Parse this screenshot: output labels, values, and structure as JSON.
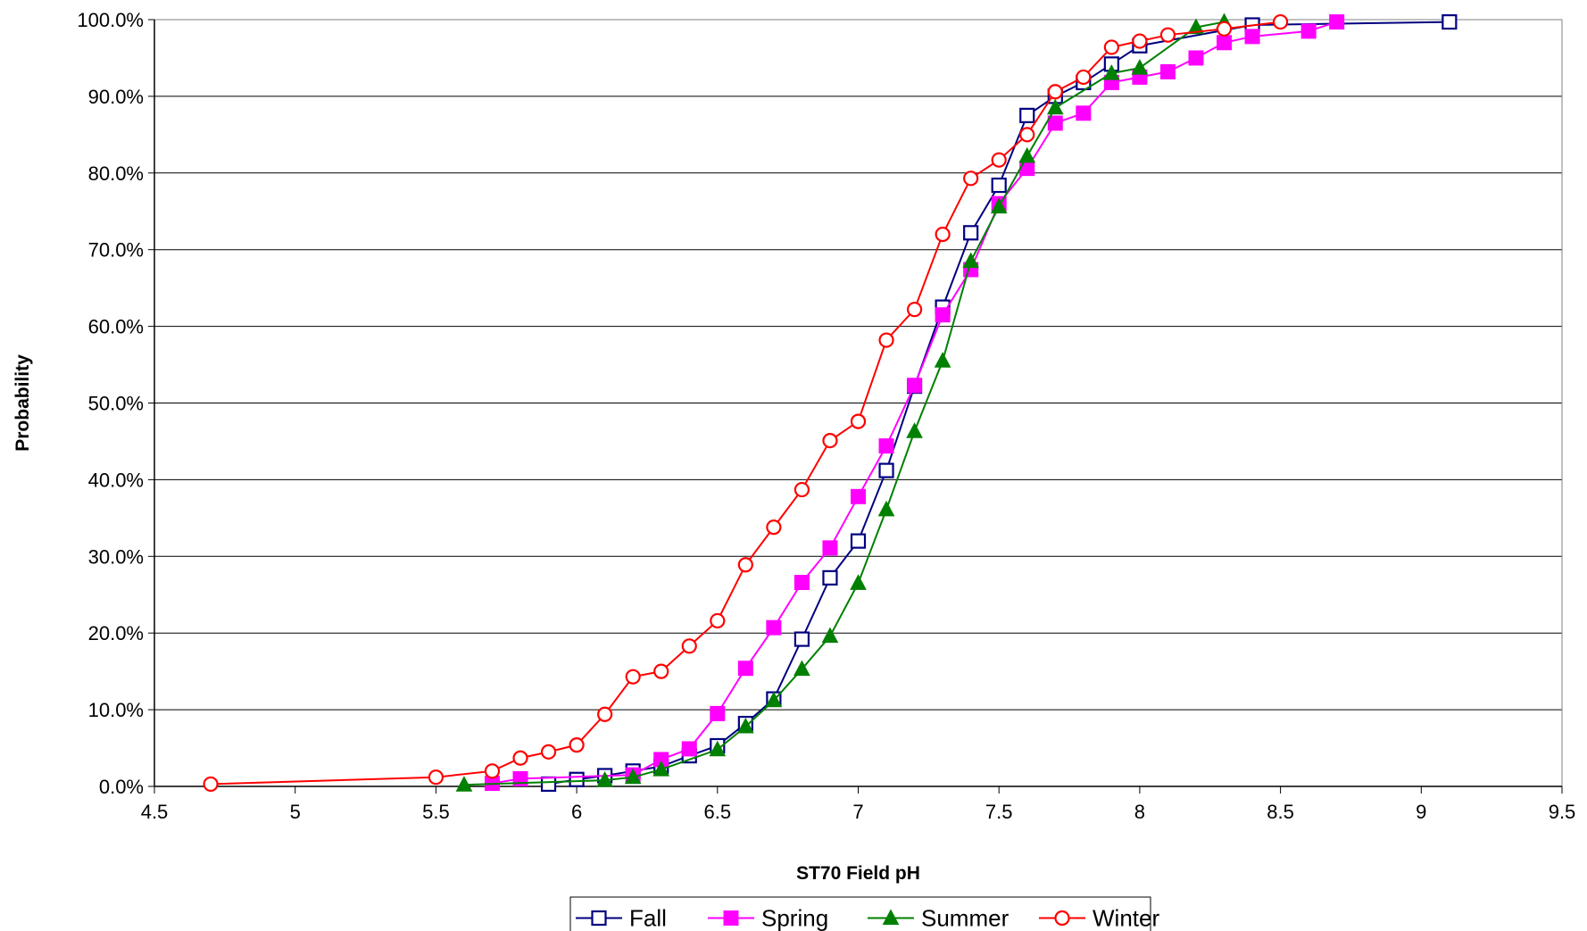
{
  "chart_data": {
    "type": "line",
    "title": "",
    "xlabel": "ST70 Field pH",
    "ylabel": "Probability",
    "xlim": [
      4.5,
      9.5
    ],
    "ylim": [
      0,
      1
    ],
    "x_ticks": [
      4.5,
      5,
      5.5,
      6,
      6.5,
      7,
      7.5,
      8,
      8.5,
      9,
      9.5
    ],
    "x_tick_labels": [
      "4.5",
      "5",
      "5.5",
      "6",
      "6.5",
      "7",
      "7.5",
      "8",
      "8.5",
      "9",
      "9.5"
    ],
    "y_ticks": [
      0,
      0.1,
      0.2,
      0.3,
      0.4,
      0.5,
      0.6,
      0.7,
      0.8,
      0.9,
      1.0
    ],
    "y_tick_labels": [
      "0.0%",
      "10.0%",
      "20.0%",
      "30.0%",
      "40.0%",
      "50.0%",
      "60.0%",
      "70.0%",
      "80.0%",
      "90.0%",
      "100.0%"
    ],
    "grid": "horizontal",
    "legend_position": "bottom",
    "series": [
      {
        "name": "Fall",
        "color": "#000080",
        "marker": "open-square",
        "x": [
          5.9,
          6.0,
          6.1,
          6.2,
          6.3,
          6.4,
          6.5,
          6.6,
          6.7,
          6.8,
          6.9,
          7.0,
          7.1,
          7.2,
          7.3,
          7.4,
          7.5,
          7.6,
          7.7,
          7.8,
          7.9,
          8.0,
          8.4,
          9.1
        ],
        "y": [
          0.003,
          0.009,
          0.014,
          0.02,
          0.026,
          0.04,
          0.053,
          0.082,
          0.114,
          0.192,
          0.272,
          0.32,
          0.412,
          0.522,
          0.625,
          0.722,
          0.784,
          0.875,
          0.9,
          0.918,
          0.942,
          0.966,
          0.993,
          0.997
        ]
      },
      {
        "name": "Spring",
        "color": "#ff00ff",
        "marker": "filled-square",
        "x": [
          5.7,
          5.8,
          6.2,
          6.3,
          6.4,
          6.5,
          6.6,
          6.7,
          6.8,
          6.9,
          7.0,
          7.1,
          7.2,
          7.3,
          7.4,
          7.5,
          7.6,
          7.7,
          7.8,
          7.9,
          8.0,
          8.1,
          8.2,
          8.3,
          8.4,
          8.6,
          8.7
        ],
        "y": [
          0.004,
          0.01,
          0.015,
          0.035,
          0.049,
          0.095,
          0.154,
          0.207,
          0.266,
          0.311,
          0.378,
          0.444,
          0.523,
          0.615,
          0.674,
          0.76,
          0.806,
          0.865,
          0.878,
          0.918,
          0.925,
          0.932,
          0.95,
          0.97,
          0.978,
          0.985,
          0.997
        ]
      },
      {
        "name": "Summer",
        "color": "#008000",
        "marker": "filled-triangle",
        "x": [
          5.6,
          6.1,
          6.2,
          6.3,
          6.5,
          6.6,
          6.7,
          6.8,
          6.9,
          7.0,
          7.1,
          7.2,
          7.3,
          7.4,
          7.5,
          7.6,
          7.7,
          7.9,
          8.0,
          8.2,
          8.3
        ],
        "y": [
          0.002,
          0.008,
          0.012,
          0.022,
          0.048,
          0.078,
          0.112,
          0.153,
          0.196,
          0.265,
          0.361,
          0.463,
          0.555,
          0.685,
          0.756,
          0.822,
          0.885,
          0.93,
          0.937,
          0.99,
          0.997
        ]
      },
      {
        "name": "Winter",
        "color": "#ff0000",
        "marker": "open-circle",
        "x": [
          4.7,
          5.5,
          5.7,
          5.8,
          5.9,
          6.0,
          6.1,
          6.2,
          6.3,
          6.4,
          6.5,
          6.6,
          6.7,
          6.8,
          6.9,
          7.0,
          7.1,
          7.2,
          7.3,
          7.4,
          7.5,
          7.6,
          7.7,
          7.8,
          7.9,
          8.0,
          8.1,
          8.3,
          8.5
        ],
        "y": [
          0.003,
          0.012,
          0.02,
          0.037,
          0.045,
          0.054,
          0.094,
          0.143,
          0.15,
          0.183,
          0.216,
          0.289,
          0.338,
          0.387,
          0.451,
          0.476,
          0.582,
          0.622,
          0.72,
          0.793,
          0.817,
          0.85,
          0.906,
          0.925,
          0.964,
          0.972,
          0.98,
          0.988,
          0.997
        ]
      }
    ]
  }
}
